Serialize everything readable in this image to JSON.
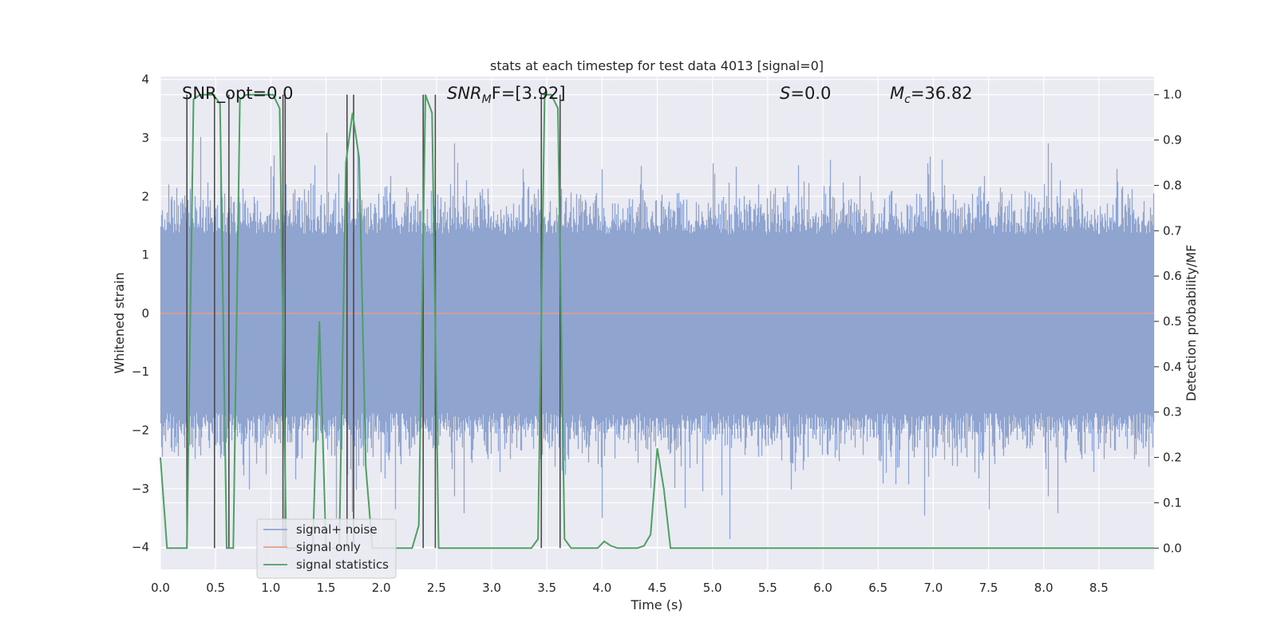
{
  "chart_data": {
    "type": "line",
    "title": "stats at each timestep for test data 4013 [signal=0]",
    "xlabel": "Time (s)",
    "ylabel_left": "Whitened strain",
    "ylabel_right": "Detection probability/MF",
    "xlim": [
      0,
      9.0
    ],
    "ylim_left": [
      -4.38,
      4.05
    ],
    "ylim_right": [
      -0.047,
      1.04
    ],
    "xticks": [
      "0.0",
      "0.5",
      "1.0",
      "1.5",
      "2.0",
      "2.5",
      "3.0",
      "3.5",
      "4.0",
      "4.5",
      "5.0",
      "5.5",
      "6.0",
      "6.5",
      "7.0",
      "7.5",
      "8.0",
      "8.5"
    ],
    "yticks_left": [
      "−4",
      "−3",
      "−2",
      "−1",
      "0",
      "1",
      "2",
      "3",
      "4"
    ],
    "yticks_right": [
      "0.0",
      "0.1",
      "0.2",
      "0.3",
      "0.4",
      "0.5",
      "0.6",
      "0.7",
      "0.8",
      "0.9",
      "1.0"
    ],
    "grid": true,
    "legend_position": "lower-left",
    "annotations": {
      "snr_opt": "SNR_opt=0.0",
      "snr_mf_base": "SNR",
      "snr_mf_sub": "M",
      "snr_mf_rest": "F=[3.92]",
      "s_var": "S",
      "s_rest": "=0.0",
      "mc_var": "M",
      "mc_sub": "c",
      "mc_rest": "=36.82"
    },
    "series": [
      {
        "name": "signal+ noise",
        "color": "#8fa4cf",
        "axis": "left",
        "noise_band": [
          -1.7,
          1.35
        ],
        "extreme_range": [
          -4.0,
          3.7
        ]
      },
      {
        "name": "signal only",
        "color": "#e3a08a",
        "axis": "left",
        "values_constant": 0.0
      },
      {
        "name": "signal statistics",
        "color": "#4e9f63",
        "axis": "right",
        "x": [
          0.0,
          0.06,
          0.12,
          0.18,
          0.24,
          0.3,
          0.36,
          0.42,
          0.48,
          0.54,
          0.6,
          0.66,
          0.72,
          0.78,
          0.84,
          0.9,
          0.96,
          1.02,
          1.08,
          1.14,
          1.2,
          1.26,
          1.32,
          1.38,
          1.44,
          1.5,
          1.56,
          1.62,
          1.68,
          1.74,
          1.8,
          1.86,
          1.92,
          1.98,
          2.04,
          2.1,
          2.16,
          2.22,
          2.28,
          2.34,
          2.4,
          2.46,
          2.52,
          2.58,
          2.64,
          2.7,
          2.76,
          2.82,
          2.88,
          2.94,
          3.0,
          3.06,
          3.12,
          3.18,
          3.24,
          3.3,
          3.36,
          3.42,
          3.48,
          3.54,
          3.6,
          3.66,
          3.72,
          3.78,
          3.84,
          3.9,
          3.96,
          4.02,
          4.08,
          4.14,
          4.2,
          4.26,
          4.32,
          4.38,
          4.44,
          4.5,
          4.56,
          4.62,
          4.68,
          4.74,
          4.8,
          5.0,
          5.5,
          6.0,
          6.5,
          7.0,
          7.5,
          8.0,
          8.5,
          9.0
        ],
        "values": [
          0.2,
          0.0,
          0.0,
          0.0,
          0.0,
          0.99,
          1.0,
          1.0,
          1.0,
          0.98,
          0.0,
          0.0,
          0.99,
          1.0,
          1.0,
          1.0,
          1.0,
          1.0,
          0.97,
          0.0,
          0.0,
          0.0,
          0.0,
          0.0,
          0.5,
          0.0,
          0.0,
          0.0,
          0.85,
          0.96,
          0.86,
          0.18,
          0.0,
          0.0,
          0.0,
          0.0,
          0.0,
          0.0,
          0.0,
          0.05,
          1.0,
          0.96,
          0.0,
          0.0,
          0.0,
          0.0,
          0.0,
          0.0,
          0.0,
          0.0,
          0.0,
          0.0,
          0.0,
          0.0,
          0.0,
          0.0,
          0.0,
          0.02,
          1.0,
          1.0,
          0.97,
          0.02,
          0.0,
          0.0,
          0.0,
          0.0,
          0.0,
          0.015,
          0.005,
          0.0,
          0.0,
          0.0,
          0.0,
          0.005,
          0.03,
          0.22,
          0.13,
          0.0,
          0.0,
          0.0,
          0.0,
          0.0,
          0.0,
          0.0,
          0.0,
          0.0,
          0.0,
          0.0,
          0.0,
          0.0
        ]
      }
    ],
    "vertical_lines_x": [
      0.24,
      0.49,
      0.62,
      1.11,
      1.13,
      1.69,
      1.75,
      2.38,
      2.49,
      3.45,
      3.62
    ]
  }
}
